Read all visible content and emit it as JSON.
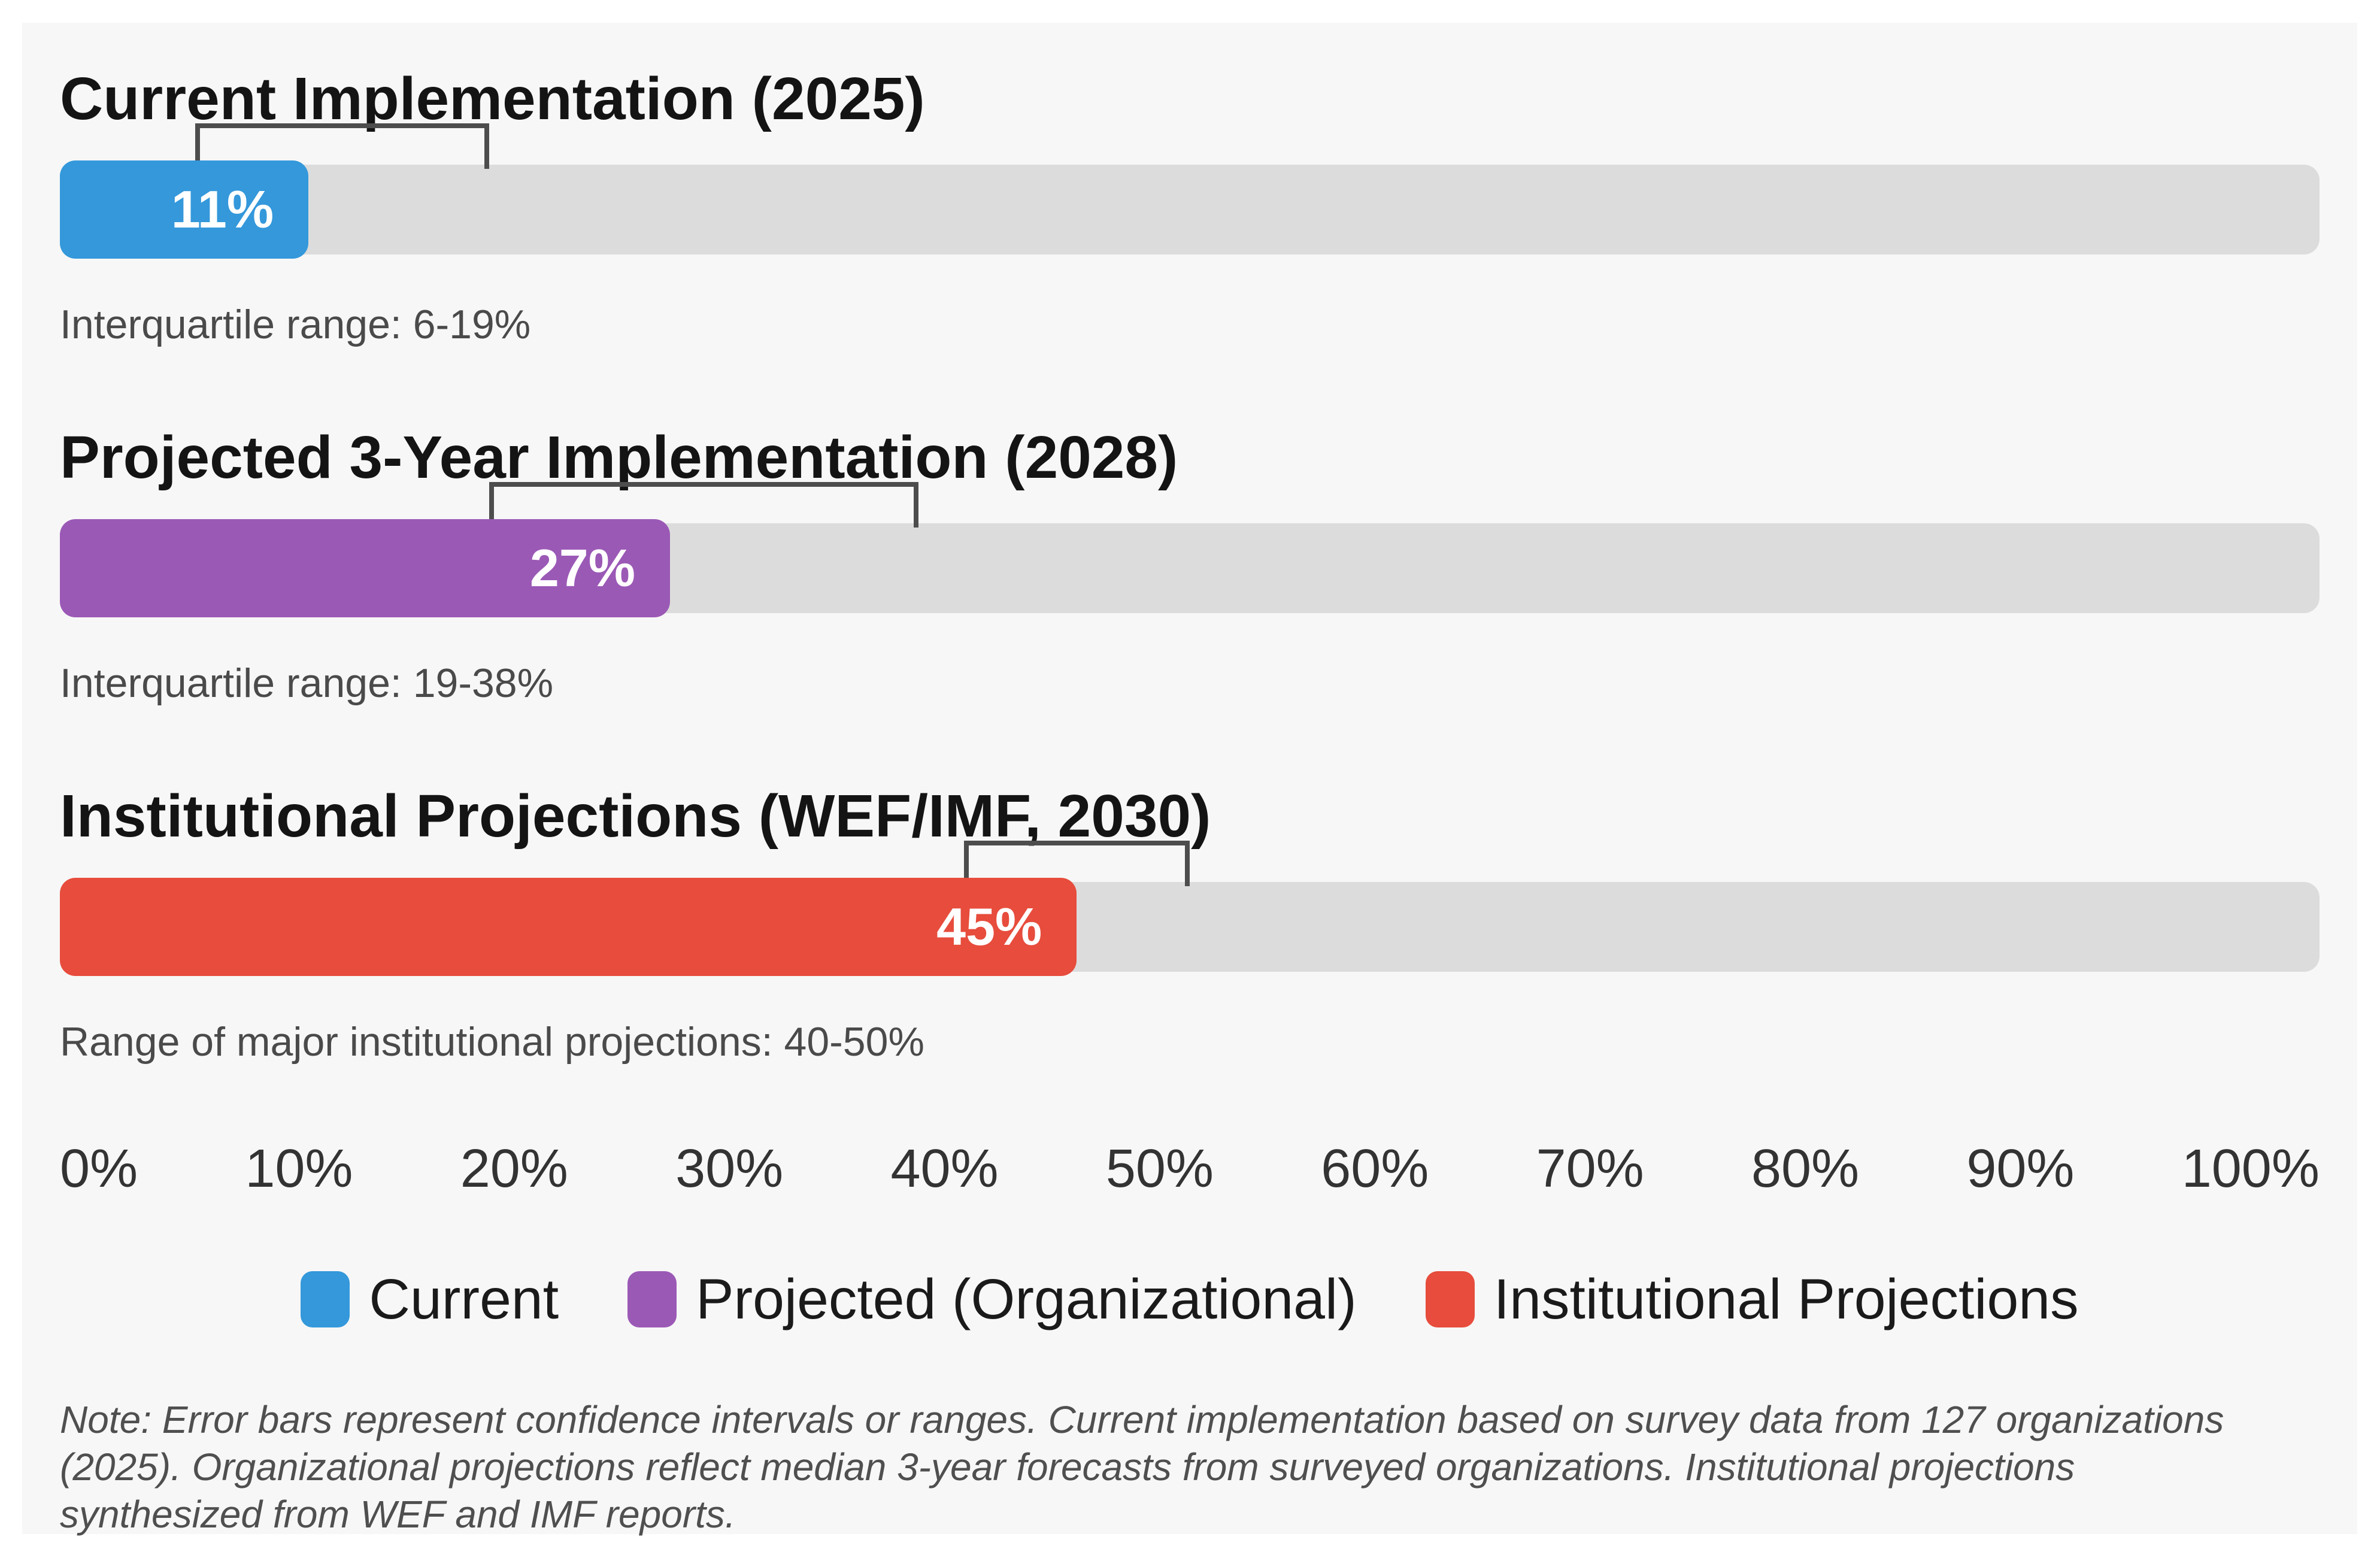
{
  "chart_data": {
    "type": "bar",
    "orientation": "horizontal",
    "title": "",
    "xlabel": "",
    "ylabel": "",
    "axis": {
      "min": 0,
      "max": 100,
      "tick_labels": [
        "0%",
        "10%",
        "20%",
        "30%",
        "40%",
        "50%",
        "60%",
        "70%",
        "80%",
        "90%",
        "100%"
      ]
    },
    "grid": false,
    "legend_position": "bottom-center",
    "bars": [
      {
        "title": "Current Implementation (2025)",
        "value": 11,
        "value_label": "11%",
        "range_low": 6,
        "range_high": 19,
        "range_note": "Interquartile range: 6-19%",
        "color": "#3498db"
      },
      {
        "title": "Projected 3-Year Implementation (2028)",
        "value": 27,
        "value_label": "27%",
        "range_low": 19,
        "range_high": 38,
        "range_note": "Interquartile range: 19-38%",
        "color": "#9b59b6"
      },
      {
        "title": "Institutional Projections (WEF/IMF, 2030)",
        "value": 45,
        "value_label": "45%",
        "range_low": 40,
        "range_high": 50,
        "range_note": "Range of major institutional projections: 40-50%",
        "color": "#e74c3c"
      }
    ],
    "legend": [
      {
        "label": "Current",
        "color": "#3498db"
      },
      {
        "label": "Projected (Organizational)",
        "color": "#9b59b6"
      },
      {
        "label": "Institutional Projections",
        "color": "#e74c3c"
      }
    ],
    "note": "Note: Error bars represent confidence intervals or ranges. Current implementation based on survey data from 127 organizations (2025). Organizational projections reflect median 3-year forecasts from surveyed organizations. Institutional projections synthesized from WEF and IMF reports.",
    "colors": {
      "track": "#dcdcdc",
      "panel_background": "#f7f7f7",
      "bracket": "#4d4d4d",
      "title_text": "#141414",
      "subtext": "#4a4a4a"
    }
  }
}
